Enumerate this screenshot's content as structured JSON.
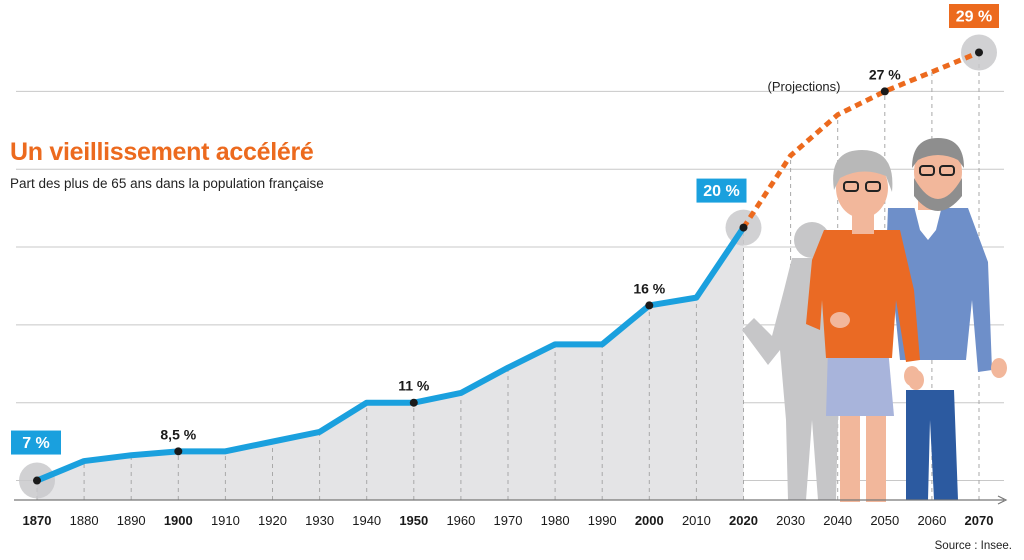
{
  "header": {
    "title": "Un vieillissement accéléré",
    "subtitle": "Part des plus de 65 ans dans la population française"
  },
  "source": "Source : Insee.",
  "annotation": "(Projections)",
  "colors": {
    "historical": "#1aa0de",
    "projection": "#ec6a1e",
    "area": "#e4e4e6",
    "title": "#ec6a1e"
  },
  "chart_data": {
    "type": "line",
    "title": "Un vieillissement accéléré",
    "subtitle": "Part des plus de 65 ans dans la population française",
    "xlabel": "",
    "ylabel": "",
    "ylim": [
      6,
      30
    ],
    "grid": true,
    "x": [
      1870,
      1880,
      1890,
      1900,
      1910,
      1920,
      1930,
      1940,
      1950,
      1960,
      1970,
      1980,
      1990,
      2000,
      2010,
      2020,
      2030,
      2040,
      2050,
      2060,
      2070
    ],
    "tick_labels": [
      "1870",
      "1880",
      "1890",
      "1900",
      "1910",
      "1920",
      "1930",
      "1940",
      "1950",
      "1960",
      "1970",
      "1980",
      "1990",
      "2000",
      "2010",
      "2020",
      "2030",
      "2040",
      "2050",
      "2060",
      "2070"
    ],
    "bold_ticks": [
      "1870",
      "1900",
      "1950",
      "2000",
      "2020",
      "2070"
    ],
    "series": [
      {
        "kind": "historical",
        "x": [
          1870,
          1880,
          1890,
          1900,
          1910,
          1920,
          1930,
          1940,
          1950,
          1960,
          1970,
          1980,
          1990,
          2000,
          2010,
          2020
        ],
        "values": [
          7.0,
          8.0,
          8.3,
          8.5,
          8.5,
          9.0,
          9.5,
          11.0,
          11.0,
          11.5,
          12.8,
          14.0,
          14.0,
          16.0,
          16.4,
          20.0
        ]
      },
      {
        "kind": "projection",
        "x": [
          2020,
          2030,
          2040,
          2050,
          2060,
          2070
        ],
        "values": [
          20.0,
          23.7,
          25.8,
          27.0,
          28.0,
          29.0
        ]
      }
    ],
    "data_labels": [
      {
        "x": 1870,
        "y": 7.0,
        "label": "7 %",
        "style": "box-blue"
      },
      {
        "x": 1900,
        "y": 8.5,
        "label": "8,5 %",
        "style": "plain"
      },
      {
        "x": 1950,
        "y": 11.0,
        "label": "11 %",
        "style": "plain"
      },
      {
        "x": 2000,
        "y": 16.0,
        "label": "16 %",
        "style": "plain"
      },
      {
        "x": 2020,
        "y": 20.0,
        "label": "20 %",
        "style": "box-blue"
      },
      {
        "x": 2050,
        "y": 27.0,
        "label": "27 %",
        "style": "plain"
      },
      {
        "x": 2070,
        "y": 29.0,
        "label": "29 %",
        "style": "box-orange"
      }
    ]
  }
}
